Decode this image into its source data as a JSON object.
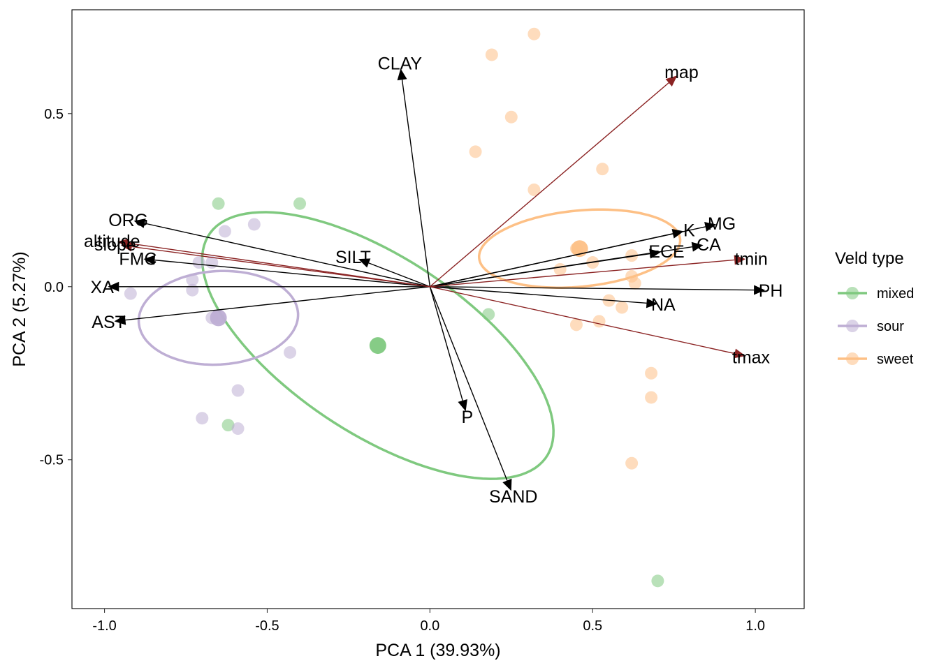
{
  "chart_data": {
    "type": "scatter",
    "subtype": "pca-biplot",
    "xlabel": "PCA 1 (39.93%)",
    "ylabel": "PCA 2 (5.27%)",
    "xlim": [
      -1.1,
      1.15
    ],
    "ylim": [
      -0.93,
      0.8
    ],
    "xticks": [
      -1.0,
      -0.5,
      0.0,
      0.5,
      1.0
    ],
    "xtick_labels": [
      "-1.0",
      "-0.5",
      "0.0",
      "0.5",
      "1.0"
    ],
    "yticks": [
      -0.5,
      0.0,
      0.5
    ],
    "ytick_labels": [
      "-0.5",
      "0.0",
      "0.5"
    ],
    "grid": false,
    "legend": {
      "title": "Veld type",
      "position": "right",
      "entries": [
        "mixed",
        "sour",
        "sweet"
      ]
    },
    "colors": {
      "mixed": "#7fc97f",
      "sour": "#beaed4",
      "sweet": "#fdc086",
      "soil_arrow": "#000000",
      "climate_arrow": "#8b2323"
    },
    "series": [
      {
        "name": "mixed",
        "points": [
          [
            -0.65,
            0.24
          ],
          [
            -0.4,
            0.24
          ],
          [
            -0.62,
            -0.4
          ],
          [
            0.18,
            -0.08
          ],
          [
            0.7,
            -0.85
          ]
        ],
        "centroid": [
          -0.16,
          -0.17
        ],
        "ellipse": {
          "center": [
            -0.16,
            -0.17
          ],
          "rx": 0.61,
          "ry": 0.26,
          "angle_deg": -31
        }
      },
      {
        "name": "sour",
        "points": [
          [
            -0.63,
            0.16
          ],
          [
            -0.54,
            0.18
          ],
          [
            -0.71,
            0.07
          ],
          [
            -0.67,
            0.07
          ],
          [
            -0.73,
            0.02
          ],
          [
            -0.92,
            -0.02
          ],
          [
            -0.73,
            -0.01
          ],
          [
            -0.67,
            -0.09
          ],
          [
            -0.65,
            -0.09
          ],
          [
            -0.43,
            -0.19
          ],
          [
            -0.59,
            -0.3
          ],
          [
            -0.7,
            -0.38
          ],
          [
            -0.59,
            -0.41
          ]
        ],
        "centroid": [
          -0.65,
          -0.09
        ],
        "ellipse": {
          "center": [
            -0.65,
            -0.09
          ],
          "rx": 0.135,
          "ry": 0.245,
          "angle_deg": 93
        }
      },
      {
        "name": "sweet",
        "points": [
          [
            0.32,
            0.73
          ],
          [
            0.19,
            0.67
          ],
          [
            0.25,
            0.49
          ],
          [
            0.14,
            0.39
          ],
          [
            0.53,
            0.34
          ],
          [
            0.32,
            0.28
          ],
          [
            0.45,
            0.11
          ],
          [
            0.62,
            0.09
          ],
          [
            0.4,
            0.05
          ],
          [
            0.5,
            0.07
          ],
          [
            0.62,
            0.03
          ],
          [
            0.63,
            0.01
          ],
          [
            0.55,
            -0.04
          ],
          [
            0.59,
            -0.06
          ],
          [
            0.52,
            -0.1
          ],
          [
            0.45,
            -0.11
          ],
          [
            0.68,
            -0.25
          ],
          [
            0.68,
            -0.32
          ],
          [
            0.62,
            -0.51
          ]
        ],
        "centroid": [
          0.46,
          0.11
        ],
        "ellipse": {
          "center": [
            0.46,
            0.11
          ],
          "rx": 0.11,
          "ry": 0.31,
          "angle_deg": 95
        }
      }
    ],
    "arrows": [
      {
        "label": "CLAY",
        "x": -0.09,
        "y": 0.63,
        "group": "soil"
      },
      {
        "label": "ORG",
        "x": -0.91,
        "y": 0.19,
        "group": "soil"
      },
      {
        "label": "FMC",
        "x": -0.88,
        "y": 0.08,
        "group": "soil"
      },
      {
        "label": "SILT",
        "x": -0.22,
        "y": 0.08,
        "group": "soil"
      },
      {
        "label": "XA",
        "x": -0.99,
        "y": 0.0,
        "group": "soil"
      },
      {
        "label": "AST",
        "x": -0.97,
        "y": -0.1,
        "group": "soil"
      },
      {
        "label": "P",
        "x": 0.11,
        "y": -0.36,
        "group": "soil"
      },
      {
        "label": "SAND",
        "x": 0.25,
        "y": -0.59,
        "group": "soil"
      },
      {
        "label": "K",
        "x": 0.78,
        "y": 0.16,
        "group": "soil"
      },
      {
        "label": "MG",
        "x": 0.88,
        "y": 0.18,
        "group": "soil"
      },
      {
        "label": "ECE",
        "x": 0.71,
        "y": 0.1,
        "group": "soil"
      },
      {
        "label": "CA",
        "x": 0.84,
        "y": 0.12,
        "group": "soil"
      },
      {
        "label": "PH",
        "x": 1.03,
        "y": -0.01,
        "group": "soil"
      },
      {
        "label": "NA",
        "x": 0.7,
        "y": -0.05,
        "group": "soil"
      },
      {
        "label": "map",
        "x": 0.76,
        "y": 0.61,
        "group": "climate"
      },
      {
        "label": "tmin",
        "x": 0.97,
        "y": 0.08,
        "group": "climate"
      },
      {
        "label": "tmax",
        "x": 0.97,
        "y": -0.2,
        "group": "climate"
      },
      {
        "label": "altitude",
        "x": -0.96,
        "y": 0.13,
        "group": "climate"
      },
      {
        "label": "slope",
        "x": -0.95,
        "y": 0.12,
        "group": "climate"
      }
    ]
  }
}
